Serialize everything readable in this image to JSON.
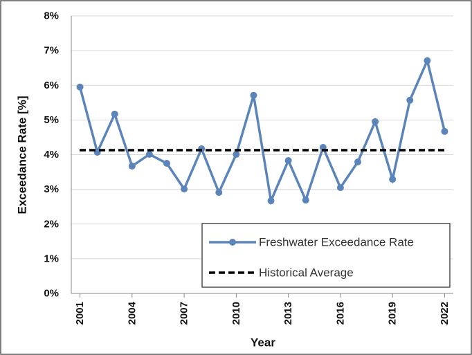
{
  "chart_data": {
    "type": "line",
    "x": [
      2001,
      2002,
      2003,
      2004,
      2005,
      2006,
      2007,
      2008,
      2009,
      2010,
      2011,
      2012,
      2013,
      2014,
      2015,
      2016,
      2017,
      2018,
      2019,
      2020,
      2021,
      2022
    ],
    "xlim": [
      2000.5,
      2022.5
    ],
    "xticks": [
      2001,
      2004,
      2007,
      2010,
      2013,
      2016,
      2019,
      2022
    ],
    "xlabel": "Year",
    "ylabel": "Exceedance Rate [%]",
    "ylim": [
      0,
      8
    ],
    "yticks": [
      {
        "value": 0,
        "label": "0%"
      },
      {
        "value": 1,
        "label": "1%"
      },
      {
        "value": 2,
        "label": "2%"
      },
      {
        "value": 3,
        "label": "3%"
      },
      {
        "value": 4,
        "label": "4%"
      },
      {
        "value": 5,
        "label": "5%"
      },
      {
        "value": 6,
        "label": "6%"
      },
      {
        "value": 7,
        "label": "7%"
      },
      {
        "value": 8,
        "label": "8%"
      }
    ],
    "grid": true,
    "legend": "lower right",
    "series": [
      {
        "name": "Freshwater Exceedance Rate",
        "color": "#5b84b8",
        "values": [
          5.95,
          4.07,
          5.17,
          3.67,
          4.01,
          3.75,
          3.01,
          4.17,
          2.91,
          4.01,
          5.71,
          2.67,
          3.83,
          2.69,
          4.21,
          3.05,
          3.79,
          4.95,
          3.29,
          5.57,
          6.71,
          4.67
        ]
      },
      {
        "name": "Historical Average",
        "color": "#000000",
        "dash": true,
        "value": 4.13
      }
    ]
  }
}
